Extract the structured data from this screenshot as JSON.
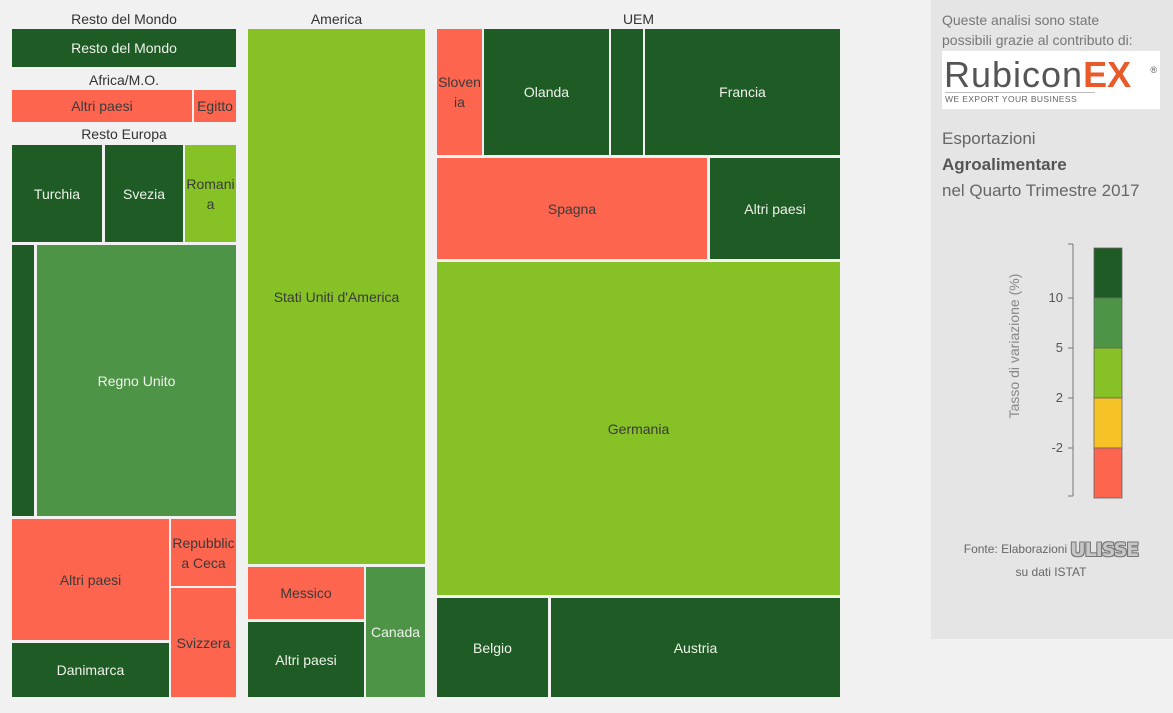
{
  "colors": {
    "dark_green": "#1f5b24",
    "mid_green": "#4d9447",
    "light_green": "#86c125",
    "yellow": "#f5c326",
    "red": "#fe654f",
    "background": "#f1f1f1",
    "sidebar_bg": "#e5e5e5"
  },
  "sidebar": {
    "intro": "Queste analisi sono state possibili grazie al contributo di:",
    "logo": {
      "name": "RubiconEX",
      "word_main": "Rubicon",
      "word_ex": "EX",
      "registered": "®",
      "tagline": "WE EXPORT YOUR BUSINESS"
    },
    "title_prefix": "Esportazioni ",
    "title_bold": "Agroalimentare",
    "title_suffix": "nel Quarto Trimestre 2017",
    "legend": {
      "axis_title": "Tasso di variazione (%)",
      "ticks": [
        "10",
        "5",
        "2",
        "-2"
      ],
      "bands": [
        "dark_green",
        "mid_green",
        "light_green",
        "yellow",
        "red"
      ]
    },
    "source_prefix": "Fonte: Elaborazioni",
    "source_brand": "ULISSE",
    "source_suffix": "su dati ISTAT"
  },
  "chart_data": {
    "type": "treemap",
    "value_shown_by": "cell area",
    "color_encodes": "Tasso di variazione (%)",
    "color_scale": [
      {
        "range": "> 10",
        "color": "dark_green"
      },
      {
        "range": "5 – 10",
        "color": "mid_green"
      },
      {
        "range": "2 – 5",
        "color": "light_green"
      },
      {
        "range": "-2 – 2",
        "color": "yellow"
      },
      {
        "range": "< -2",
        "color": "red"
      }
    ],
    "groups": [
      {
        "name": "Resto del Mondo",
        "items": [
          {
            "name": "Resto del Mondo",
            "color": "dark_green"
          }
        ]
      },
      {
        "name": "Africa/M.O.",
        "items": [
          {
            "name": "Altri paesi",
            "color": "red"
          },
          {
            "name": "Egitto",
            "color": "red"
          }
        ]
      },
      {
        "name": "Resto Europa",
        "items": [
          {
            "name": "Turchia",
            "color": "dark_green"
          },
          {
            "name": "Svezia",
            "color": "dark_green"
          },
          {
            "name": "Romania",
            "color": "light_green"
          },
          {
            "name": "",
            "color": "dark_green"
          },
          {
            "name": "Regno Unito",
            "color": "mid_green"
          },
          {
            "name": "Altri paesi",
            "color": "red"
          },
          {
            "name": "Repubblica Ceca",
            "color": "red"
          },
          {
            "name": "Svizzera",
            "color": "red"
          },
          {
            "name": "Danimarca",
            "color": "dark_green"
          }
        ]
      },
      {
        "name": "America",
        "items": [
          {
            "name": "Stati Uniti d'America",
            "color": "light_green"
          },
          {
            "name": "Messico",
            "color": "red"
          },
          {
            "name": "Altri paesi",
            "color": "dark_green"
          },
          {
            "name": "Canada",
            "color": "mid_green"
          }
        ]
      },
      {
        "name": "UEM",
        "items": [
          {
            "name": "Slovenia",
            "color": "red"
          },
          {
            "name": "Olanda",
            "color": "dark_green"
          },
          {
            "name": "",
            "color": "dark_green"
          },
          {
            "name": "Francia",
            "color": "dark_green"
          },
          {
            "name": "Spagna",
            "color": "red"
          },
          {
            "name": "Altri paesi",
            "color": "dark_green"
          },
          {
            "name": "Germania",
            "color": "light_green"
          },
          {
            "name": "Belgio",
            "color": "dark_green"
          },
          {
            "name": "Austria",
            "color": "dark_green"
          }
        ]
      }
    ]
  }
}
